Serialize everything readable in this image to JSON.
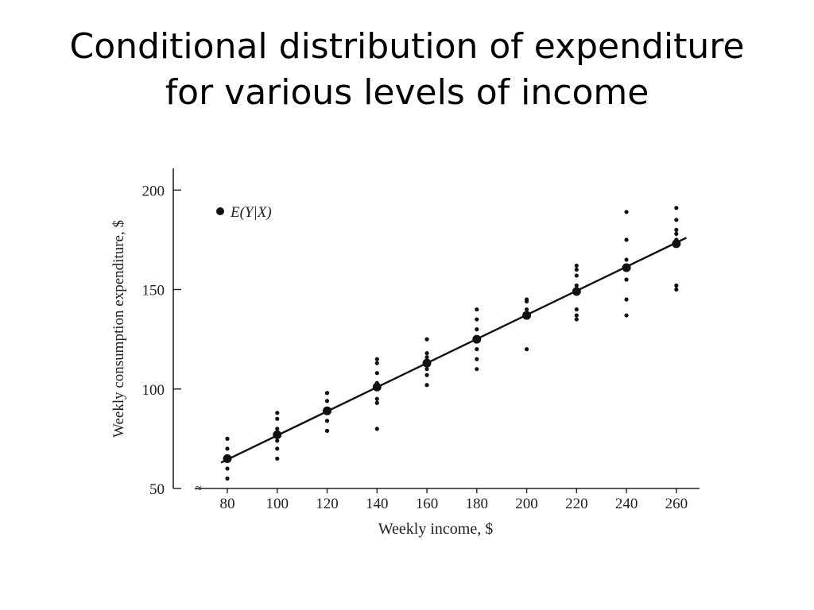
{
  "slide": {
    "title_line1": "Conditional distribution of expenditure",
    "title_line2": "for various levels of income"
  },
  "chart_data": {
    "type": "scatter",
    "xlabel": "Weekly income, $",
    "ylabel": "Weekly consumption expenditure, $",
    "xticks": [
      80,
      100,
      120,
      140,
      160,
      180,
      200,
      220,
      240,
      260
    ],
    "yticks": [
      50,
      100,
      150,
      200
    ],
    "ylim": [
      50,
      210
    ],
    "legend": {
      "label": "E(Y|X)",
      "position": "top-left"
    },
    "axis_break": "≈",
    "observations": [
      {
        "x": 80,
        "y": [
          55,
          60,
          65,
          70,
          75
        ]
      },
      {
        "x": 100,
        "y": [
          65,
          70,
          74,
          80,
          85,
          88
        ]
      },
      {
        "x": 120,
        "y": [
          79,
          84,
          90,
          94,
          98
        ]
      },
      {
        "x": 140,
        "y": [
          80,
          93,
          95,
          103,
          108,
          113,
          115
        ]
      },
      {
        "x": 160,
        "y": [
          102,
          107,
          110,
          116,
          118,
          125
        ]
      },
      {
        "x": 180,
        "y": [
          110,
          115,
          120,
          130,
          135,
          140
        ]
      },
      {
        "x": 200,
        "y": [
          120,
          136,
          140,
          144,
          145
        ]
      },
      {
        "x": 220,
        "y": [
          135,
          137,
          140,
          152,
          157,
          160,
          162
        ]
      },
      {
        "x": 240,
        "y": [
          137,
          145,
          155,
          165,
          175,
          189
        ]
      },
      {
        "x": 260,
        "y": [
          150,
          152,
          175,
          178,
          180,
          185,
          191
        ]
      }
    ],
    "conditional_means": [
      {
        "x": 80,
        "y": 65
      },
      {
        "x": 100,
        "y": 77
      },
      {
        "x": 120,
        "y": 89
      },
      {
        "x": 140,
        "y": 101
      },
      {
        "x": 160,
        "y": 113
      },
      {
        "x": 180,
        "y": 125
      },
      {
        "x": 200,
        "y": 137
      },
      {
        "x": 220,
        "y": 149
      },
      {
        "x": 240,
        "y": 161
      },
      {
        "x": 260,
        "y": 173
      }
    ],
    "regression_line": {
      "x": [
        80,
        264
      ],
      "y": [
        65.0,
        176.0
      ]
    }
  }
}
